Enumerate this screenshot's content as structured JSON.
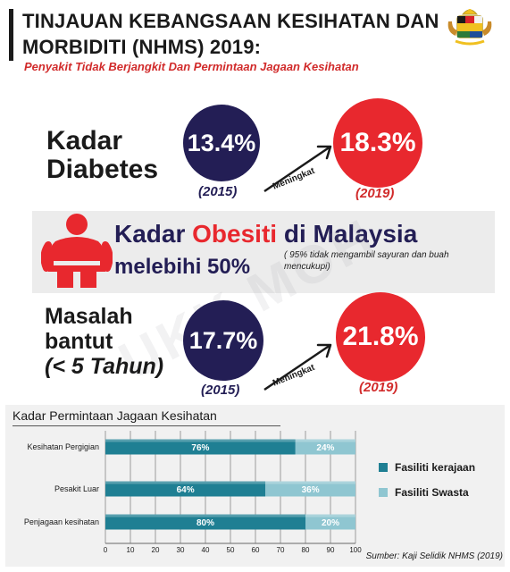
{
  "header": {
    "title_line1": "TINJAUAN KEBANGSAAN KESIHATAN DAN",
    "title_line2": "MORBIDITI (NHMS) 2019:",
    "subtitle": "Penyakit Tidak Berjangkit Dan Permintaan Jagaan Kesihatan"
  },
  "diabetes": {
    "label_line1": "Kadar",
    "label_line2": "Diabetes",
    "value_2015": "13.4%",
    "year_2015": "(2015)",
    "arrow_label": "Meningkat",
    "value_2019": "18.3%",
    "year_2019": "(2019)"
  },
  "obesity": {
    "line1_pre": "Kadar ",
    "line1_highlight": "Obesiti",
    "line1_post": " di Malaysia",
    "line2": "melebihi 50%",
    "note": "( 95% tidak mengambil sayuran dan buah mencukupi)"
  },
  "stunting": {
    "label_line1": "Masalah",
    "label_line2": "bantut",
    "label_line3": "(< 5 Tahun)",
    "value_2015": "17.7%",
    "year_2015": "(2015)",
    "arrow_label": "Meningkat",
    "value_2019": "21.8%",
    "year_2019": "(2019)"
  },
  "watermark": "UKK MOH",
  "colors": {
    "navy": "#231e55",
    "red": "#e8282e",
    "kerajaan": "#1f7f93",
    "swasta": "#8fc6d1"
  },
  "chart_data": {
    "type": "bar",
    "orientation": "horizontal",
    "stacked": true,
    "title": "Kadar Permintaan Jagaan Kesihatan",
    "categories": [
      "Kesihatan Pergigian",
      "Pesakit Luar",
      "Penjagaan kesihatan"
    ],
    "series": [
      {
        "name": "Fasiliti kerajaan",
        "values": [
          76,
          64,
          80
        ],
        "labels": [
          "76%",
          "64%",
          "80%"
        ]
      },
      {
        "name": "Fasiliti Swasta",
        "values": [
          24,
          36,
          20
        ],
        "labels": [
          "24%",
          "36%",
          "20%"
        ]
      }
    ],
    "xlim": [
      0,
      100
    ],
    "xticks": [
      "0",
      "10",
      "20",
      "30",
      "40",
      "50",
      "60",
      "70",
      "80",
      "90",
      "100"
    ],
    "grid": true,
    "legend": "right"
  },
  "source": "Sumber: Kaji Selidik NHMS (2019)"
}
